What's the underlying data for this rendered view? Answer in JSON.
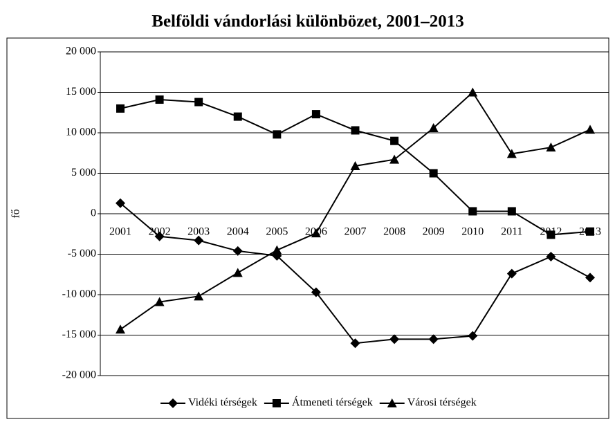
{
  "chart_data": {
    "type": "line",
    "title": "Belföldi vándorlási különbözet, 2001–2013",
    "ylabel": "fő",
    "categories": [
      "2001",
      "2002",
      "2003",
      "2004",
      "2005",
      "2006",
      "2007",
      "2008",
      "2009",
      "2010",
      "2011",
      "2012",
      "2013"
    ],
    "series": [
      {
        "name": "Vidéki térségek",
        "color": "#000000",
        "marker": "diamond",
        "values": [
          1300,
          -2800,
          -3300,
          -4600,
          -5200,
          -9700,
          -16000,
          -15500,
          -15500,
          -15100,
          -7400,
          -5300,
          -7900
        ]
      },
      {
        "name": "Átmeneti térségek",
        "color": "#000000",
        "marker": "square",
        "values": [
          13000,
          14100,
          13800,
          12000,
          9800,
          12300,
          10300,
          9000,
          5000,
          300,
          300,
          -2600,
          -2200
        ]
      },
      {
        "name": "Városi térségek",
        "color": "#000000",
        "marker": "triangle",
        "values": [
          -14300,
          -10900,
          -10200,
          -7300,
          -4500,
          -2400,
          5900,
          6700,
          10600,
          15000,
          7400,
          8200,
          10400
        ]
      }
    ],
    "ylim": [
      -20000,
      20000
    ],
    "yticks": [
      {
        "value": -20000,
        "label": "-20 000"
      },
      {
        "value": -15000,
        "label": "-15 000"
      },
      {
        "value": -10000,
        "label": "-10 000"
      },
      {
        "value": -5000,
        "label": "-5 000"
      },
      0,
      {
        "value": 5000,
        "label": "5 000"
      },
      {
        "value": 10000,
        "label": "10 000"
      },
      {
        "value": 15000,
        "label": "15 000"
      },
      {
        "value": 20000,
        "label": "20 000"
      }
    ],
    "grid": true,
    "legend": "bottom"
  }
}
